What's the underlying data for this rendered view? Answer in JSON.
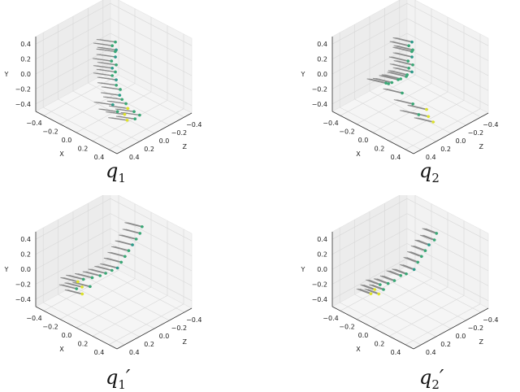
{
  "chart_data": [
    {
      "type": "scatter3d",
      "caption": "q",
      "caption_sub": "1",
      "caption_prime": "",
      "axes": {
        "xlabel": "X",
        "ylabel": "Y",
        "zlabel": "Z",
        "xlim": [
          -0.5,
          0.5
        ],
        "ylim": [
          -0.5,
          0.5
        ],
        "zlim": [
          -0.5,
          0.5
        ],
        "xticks": [
          "-0.4",
          "-0.2",
          "0.0",
          "0.2",
          "0.4"
        ],
        "yticks": [
          "-0.4",
          "-0.2",
          "0.0",
          "0.2",
          "0.4"
        ],
        "zticks": [
          "0.4",
          "0.2",
          "0.0",
          "-0.2",
          "-0.4"
        ],
        "grid": true
      },
      "arrow_dir": [
        -0.12,
        0.02,
        0.1
      ],
      "points": [
        [
          0.02,
          0.45,
          0.0,
          1
        ],
        [
          0.0,
          0.4,
          0.02,
          1
        ],
        [
          0.03,
          0.35,
          0.0,
          0
        ],
        [
          0.0,
          0.3,
          -0.02,
          1
        ],
        [
          0.02,
          0.25,
          0.0,
          0
        ],
        [
          0.0,
          0.2,
          0.03,
          1
        ],
        [
          0.03,
          0.15,
          0.0,
          1
        ],
        [
          0.0,
          0.1,
          0.02,
          0
        ],
        [
          0.02,
          0.05,
          0.0,
          1
        ],
        [
          0.0,
          0.0,
          0.02,
          1
        ],
        [
          0.03,
          -0.05,
          0.0,
          0
        ],
        [
          0.05,
          -0.1,
          0.02,
          1
        ],
        [
          0.08,
          -0.15,
          0.0,
          1
        ],
        [
          0.1,
          -0.2,
          0.03,
          0
        ],
        [
          0.12,
          -0.25,
          0.02,
          1
        ],
        [
          0.15,
          -0.3,
          0.0,
          1
        ],
        [
          0.2,
          -0.32,
          0.03,
          2
        ],
        [
          0.25,
          -0.35,
          0.0,
          1
        ],
        [
          0.18,
          -0.4,
          0.05,
          2
        ],
        [
          0.28,
          -0.42,
          0.02,
          1
        ],
        [
          0.12,
          -0.38,
          0.08,
          1
        ],
        [
          0.22,
          -0.45,
          0.06,
          2
        ],
        [
          0.3,
          -0.38,
          -0.02,
          1
        ],
        [
          0.08,
          -0.3,
          0.1,
          0
        ]
      ]
    },
    {
      "type": "scatter3d",
      "caption": "q",
      "caption_sub": "2",
      "caption_prime": "",
      "axes": {
        "xlabel": "X",
        "ylabel": "Y",
        "zlabel": "Z",
        "xlim": [
          -0.5,
          0.5
        ],
        "ylim": [
          -0.5,
          0.5
        ],
        "zlim": [
          -0.5,
          0.5
        ],
        "xticks": [
          "-0.4",
          "-0.2",
          "0.0",
          "0.2",
          "0.4"
        ],
        "yticks": [
          "-0.4",
          "-0.2",
          "0.0",
          "0.2",
          "0.4"
        ],
        "zticks": [
          "0.4",
          "0.2",
          "0.0",
          "-0.2",
          "-0.4"
        ],
        "grid": true
      },
      "arrow_dir": [
        -0.14,
        0.02,
        0.08
      ],
      "points": [
        [
          0.02,
          0.45,
          0.0,
          0
        ],
        [
          0.0,
          0.4,
          0.02,
          1
        ],
        [
          0.03,
          0.35,
          0.0,
          1
        ],
        [
          0.0,
          0.3,
          -0.02,
          1
        ],
        [
          0.02,
          0.25,
          0.0,
          0
        ],
        [
          0.0,
          0.2,
          0.03,
          1
        ],
        [
          0.03,
          0.15,
          0.0,
          1
        ],
        [
          0.0,
          0.1,
          0.02,
          1
        ],
        [
          0.02,
          0.05,
          0.0,
          0
        ],
        [
          -0.02,
          0.0,
          0.02,
          1
        ],
        [
          -0.05,
          -0.05,
          0.0,
          1
        ],
        [
          -0.1,
          -0.1,
          0.02,
          1
        ],
        [
          -0.15,
          -0.15,
          0.0,
          1
        ],
        [
          -0.2,
          -0.2,
          0.03,
          1
        ],
        [
          -0.25,
          -0.25,
          0.02,
          1
        ],
        [
          -0.3,
          -0.28,
          0.0,
          1
        ],
        [
          0.2,
          -0.35,
          0.0,
          2
        ],
        [
          0.25,
          -0.4,
          0.03,
          2
        ],
        [
          0.15,
          -0.42,
          0.05,
          1
        ],
        [
          0.3,
          -0.45,
          0.02,
          2
        ],
        [
          -0.1,
          -0.3,
          0.0,
          1
        ],
        [
          0.05,
          -0.35,
          0.02,
          1
        ]
      ]
    },
    {
      "type": "scatter3d",
      "caption": "q",
      "caption_sub": "1",
      "caption_prime": "′",
      "axes": {
        "xlabel": "X",
        "ylabel": "Y",
        "zlabel": "Z",
        "xlim": [
          -0.5,
          0.5
        ],
        "ylim": [
          -0.5,
          0.5
        ],
        "zlim": [
          -0.5,
          0.5
        ],
        "xticks": [
          "-0.4",
          "-0.2",
          "0.0",
          "0.2",
          "0.4"
        ],
        "yticks": [
          "-0.4",
          "-0.2",
          "0.0",
          "0.2",
          "0.4"
        ],
        "zticks": [
          "0.4",
          "0.2",
          "0.0",
          "-0.2",
          "-0.4"
        ],
        "grid": true
      },
      "arrow_dir": [
        -0.12,
        0.03,
        0.08
      ],
      "points": [
        [
          -0.35,
          -0.3,
          0.1,
          2
        ],
        [
          -0.3,
          -0.25,
          0.08,
          1
        ],
        [
          -0.28,
          -0.32,
          0.12,
          2
        ],
        [
          -0.22,
          -0.2,
          0.05,
          1
        ],
        [
          -0.2,
          -0.28,
          0.1,
          1
        ],
        [
          -0.15,
          -0.15,
          0.02,
          1
        ],
        [
          -0.1,
          -0.1,
          0.0,
          1
        ],
        [
          -0.05,
          -0.05,
          -0.03,
          1
        ],
        [
          0.0,
          0.0,
          -0.05,
          0
        ],
        [
          0.0,
          0.05,
          -0.1,
          1
        ],
        [
          0.0,
          0.1,
          -0.15,
          1
        ],
        [
          0.0,
          0.15,
          -0.2,
          1
        ],
        [
          0.0,
          0.2,
          -0.25,
          0
        ],
        [
          0.0,
          0.25,
          -0.3,
          1
        ],
        [
          0.0,
          0.3,
          -0.35,
          1
        ],
        [
          -0.02,
          0.35,
          -0.4,
          1
        ],
        [
          -0.32,
          -0.35,
          0.15,
          1
        ],
        [
          -0.25,
          -0.38,
          0.15,
          2
        ]
      ]
    },
    {
      "type": "scatter3d",
      "caption": "q",
      "caption_sub": "2",
      "caption_prime": "′",
      "axes": {
        "xlabel": "X",
        "ylabel": "Y",
        "zlabel": "Z",
        "xlim": [
          -0.5,
          0.5
        ],
        "ylim": [
          -0.5,
          0.5
        ],
        "zlim": [
          -0.5,
          0.5
        ],
        "xticks": [
          "-0.4",
          "-0.2",
          "0.0",
          "0.2",
          "0.4"
        ],
        "yticks": [
          "-0.4",
          "-0.2",
          "0.0",
          "0.2",
          "0.4"
        ],
        "zticks": [
          "0.4",
          "0.2",
          "0.0",
          "-0.2",
          "-0.4"
        ],
        "grid": true
      },
      "arrow_dir": [
        -0.1,
        0.04,
        0.06
      ],
      "points": [
        [
          -0.3,
          -0.35,
          0.15,
          2
        ],
        [
          -0.28,
          -0.3,
          0.1,
          1
        ],
        [
          -0.25,
          -0.38,
          0.15,
          2
        ],
        [
          -0.2,
          -0.25,
          0.08,
          1
        ],
        [
          -0.15,
          -0.2,
          0.05,
          1
        ],
        [
          -0.1,
          -0.12,
          0.02,
          1
        ],
        [
          -0.05,
          -0.08,
          0.0,
          1
        ],
        [
          0.0,
          -0.02,
          -0.05,
          0
        ],
        [
          0.0,
          0.05,
          -0.1,
          1
        ],
        [
          0.0,
          0.1,
          -0.15,
          1
        ],
        [
          0.0,
          0.15,
          -0.2,
          1
        ],
        [
          0.0,
          0.2,
          -0.25,
          0
        ],
        [
          0.02,
          0.25,
          -0.3,
          1
        ],
        [
          0.0,
          0.3,
          -0.35,
          1
        ],
        [
          -0.32,
          -0.4,
          0.18,
          2
        ],
        [
          -0.22,
          -0.32,
          0.12,
          1
        ]
      ]
    }
  ],
  "colors": {
    "pane": "#f2f2f2",
    "grid": "#d8d8d8",
    "arrow": "#8a8a8a",
    "point_palette": [
      "#2c9c8a",
      "#3aa876",
      "#dde22a"
    ]
  }
}
